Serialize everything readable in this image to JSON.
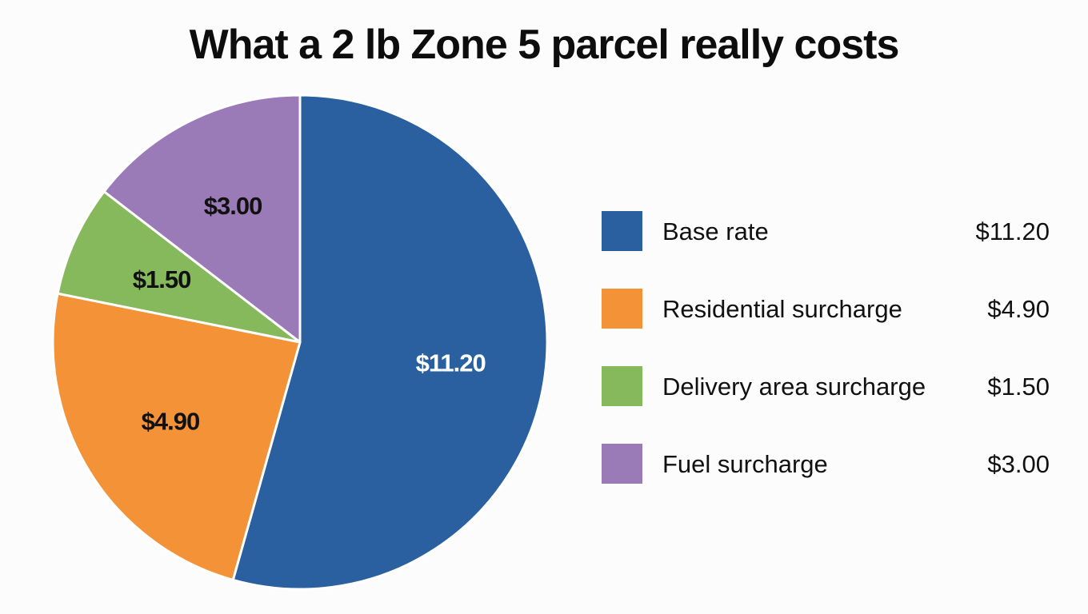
{
  "chart_data": {
    "type": "pie",
    "title": "What a 2 lb Zone 5 parcel really costs",
    "slices": [
      {
        "label": "Base rate",
        "value": 11.2,
        "value_label": "$11.20",
        "color": "#2a5fa0",
        "label_color": "#ffffff"
      },
      {
        "label": "Residential surcharge",
        "value": 4.9,
        "value_label": "$4.90",
        "color": "#f39236",
        "label_color": "#111111"
      },
      {
        "label": "Delivery area surcharge",
        "value": 1.5,
        "value_label": "$1.50",
        "color": "#86b85c",
        "label_color": "#111111"
      },
      {
        "label": "Fuel surcharge",
        "value": 3.0,
        "value_label": "$3.00",
        "color": "#9b7bb7",
        "label_color": "#111111"
      }
    ],
    "start": "12 o'clock",
    "direction": "clockwise",
    "legend_position": "right"
  }
}
